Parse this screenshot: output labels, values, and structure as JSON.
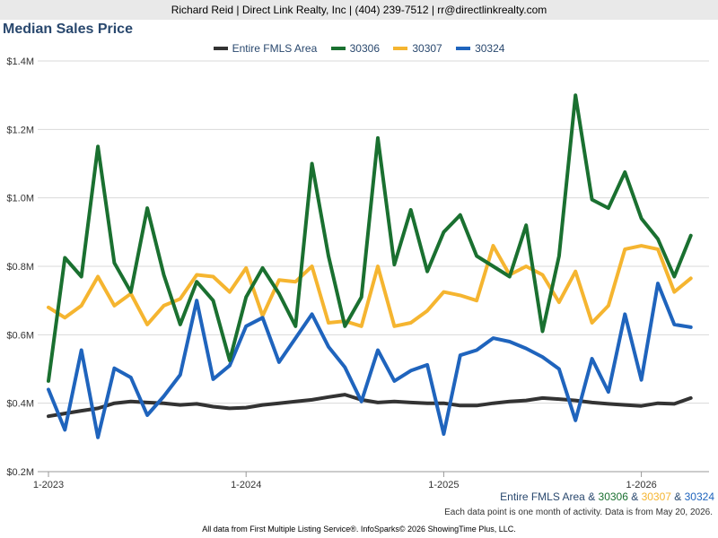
{
  "header": {
    "contact": "Richard Reid | Direct Link Realty, Inc | (404) 239-7512 | rr@directlinkrealty.com"
  },
  "chart_data": {
    "type": "line",
    "title": "Median Sales Price",
    "xlabel": "",
    "ylabel": "",
    "ylim": [
      200000,
      1400000
    ],
    "yticks": [
      200000,
      400000,
      600000,
      800000,
      1000000,
      1200000,
      1400000
    ],
    "ytick_labels": [
      "$0.2M",
      "$0.4M",
      "$0.6M",
      "$0.8M",
      "$1.0M",
      "$1.2M",
      "$1.4M"
    ],
    "xticks": [
      0,
      12,
      24,
      36
    ],
    "xtick_labels": [
      "1-2023",
      "1-2024",
      "1-2025",
      "1-2026"
    ],
    "x": [
      "1-2023",
      "2-2023",
      "3-2023",
      "4-2023",
      "5-2023",
      "6-2023",
      "7-2023",
      "8-2023",
      "9-2023",
      "10-2023",
      "11-2023",
      "12-2023",
      "1-2024",
      "2-2024",
      "3-2024",
      "4-2024",
      "5-2024",
      "6-2024",
      "7-2024",
      "8-2024",
      "9-2024",
      "10-2024",
      "11-2024",
      "12-2024",
      "1-2025",
      "2-2025",
      "3-2025",
      "4-2025",
      "5-2025",
      "6-2025",
      "7-2025",
      "8-2025",
      "9-2025",
      "10-2025",
      "11-2025",
      "12-2025",
      "1-2026",
      "2-2026",
      "3-2026",
      "4-2026"
    ],
    "grid": true,
    "legend": "top-center",
    "series": [
      {
        "name": "Entire FMLS Area",
        "color": "#333333",
        "values": [
          362000,
          370000,
          378000,
          385000,
          400000,
          405000,
          402000,
          400000,
          395000,
          398000,
          390000,
          385000,
          387000,
          395000,
          400000,
          405000,
          410000,
          418000,
          425000,
          410000,
          402000,
          405000,
          402000,
          400000,
          400000,
          393000,
          393000,
          400000,
          405000,
          408000,
          415000,
          412000,
          408000,
          402000,
          398000,
          395000,
          392000,
          400000,
          398000,
          415000
        ]
      },
      {
        "name": "30306",
        "color": "#1a7030",
        "values": [
          465000,
          825000,
          770000,
          1150000,
          810000,
          725000,
          970000,
          775000,
          630000,
          755000,
          700000,
          525000,
          710000,
          795000,
          720000,
          625000,
          1100000,
          830000,
          625000,
          710000,
          1175000,
          805000,
          965000,
          785000,
          900000,
          950000,
          830000,
          800000,
          770000,
          920000,
          610000,
          830000,
          1300000,
          995000,
          970000,
          1075000,
          940000,
          880000,
          770000,
          890000
        ]
      },
      {
        "name": "30307",
        "color": "#f5b530",
        "values": [
          680000,
          650000,
          685000,
          770000,
          685000,
          720000,
          630000,
          685000,
          705000,
          775000,
          770000,
          725000,
          795000,
          655000,
          760000,
          755000,
          800000,
          635000,
          640000,
          625000,
          800000,
          625000,
          635000,
          670000,
          725000,
          715000,
          700000,
          860000,
          775000,
          800000,
          775000,
          695000,
          785000,
          635000,
          685000,
          850000,
          860000,
          850000,
          725000,
          765000
        ]
      },
      {
        "name": "30324",
        "color": "#1f64bd",
        "values": [
          440000,
          322000,
          555000,
          300000,
          502000,
          475000,
          365000,
          420000,
          483000,
          700000,
          470000,
          510000,
          625000,
          650000,
          520000,
          590000,
          660000,
          565000,
          505000,
          405000,
          555000,
          465000,
          495000,
          512000,
          310000,
          540000,
          555000,
          590000,
          580000,
          560000,
          535000,
          500000,
          350000,
          530000,
          433000,
          660000,
          468000,
          750000,
          630000,
          622000
        ]
      }
    ]
  },
  "footer": {
    "series_label_main": "Entire FMLS Area",
    "sep1": " & ",
    "series_label_2": "30306",
    "sep2": " & ",
    "series_label_3": "30307",
    "sep3": " & ",
    "series_label_4": "30324",
    "note": "Each data point is one month of activity. Data is from May 20, 2026.",
    "source": "All data from First Multiple Listing Service®. InfoSparks© 2026 ShowingTime Plus, LLC."
  }
}
